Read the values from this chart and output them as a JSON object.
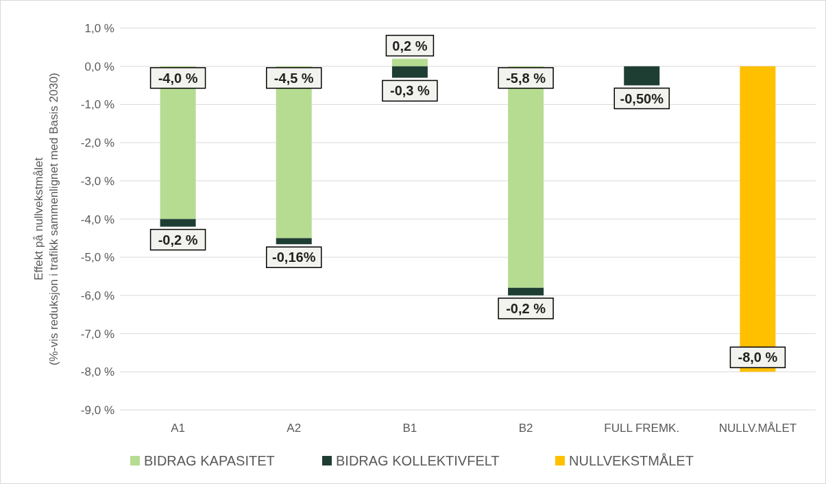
{
  "chart_data": {
    "type": "bar",
    "stacked": true,
    "ylabel": "Effekt på nullvekstmålet\n(%-vis reduksjon i trafikk sammenlignet med Basis 2030)",
    "categories": [
      "A1",
      "A2",
      "B1",
      "B2",
      "FULL FREMK.",
      "NULLV.MÅLET"
    ],
    "series": [
      {
        "name": "BIDRAG KAPASITET",
        "color": "#b6dc91",
        "values": [
          -4.0,
          -4.5,
          0.2,
          -5.8,
          null,
          null
        ],
        "value_labels": [
          "-4,0 %",
          "-4,5 %",
          "0,2 %",
          "-5,8 %",
          null,
          null
        ]
      },
      {
        "name": "BIDRAG KOLLEKTIVFELT",
        "color": "#1f3e33",
        "values": [
          -0.2,
          -0.16,
          -0.3,
          -0.2,
          -0.5,
          null
        ],
        "value_labels": [
          "-0,2 %",
          "-0,16%",
          "-0,3 %",
          "-0,2 %",
          "-0,50%",
          null
        ]
      },
      {
        "name": "NULLVEKSTMÅLET",
        "color": "#ffc000",
        "values": [
          null,
          null,
          null,
          null,
          null,
          -8.0
        ],
        "value_labels": [
          null,
          null,
          null,
          null,
          null,
          "-8,0 %"
        ]
      }
    ],
    "ylim": [
      -9,
      1
    ],
    "yticks": [
      {
        "value": 1,
        "label": "1,0 %"
      },
      {
        "value": 0,
        "label": "0,0 %"
      },
      {
        "value": -1,
        "label": "-1,0 %"
      },
      {
        "value": -2,
        "label": "-2,0 %"
      },
      {
        "value": -3,
        "label": "-3,0 %"
      },
      {
        "value": -4,
        "label": "-4,0 %"
      },
      {
        "value": -5,
        "label": "-5,0 %"
      },
      {
        "value": -6,
        "label": "-6,0 %"
      },
      {
        "value": -7,
        "label": "-7,0 %"
      },
      {
        "value": -8,
        "label": "-8,0 %"
      },
      {
        "value": -9,
        "label": "-9,0 %"
      }
    ],
    "grid": "y",
    "legend": "bottom"
  }
}
